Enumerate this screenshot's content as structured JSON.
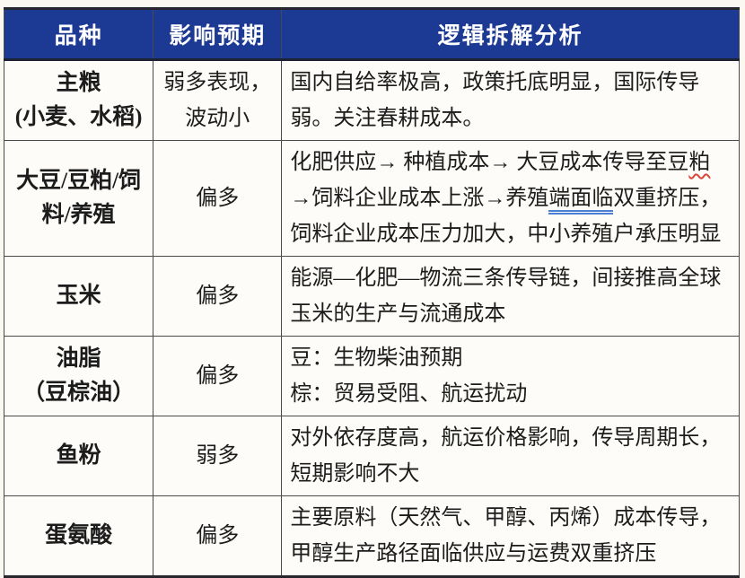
{
  "colors": {
    "page_bg": "#fbf8f1",
    "cell_bg": "#fdfcf8",
    "header_bg": "#1c3a94",
    "header_text": "#ffffff",
    "header_border": "#1d2335",
    "heavy_border": "#26262c",
    "thin_border": "#4a4a4a",
    "light_border": "#9a9a9a",
    "text_color": "#1c1c1c",
    "wavy_red": "#d9473b",
    "double_blue": "#4a7fd4"
  },
  "table": {
    "header": {
      "columns": [
        "品种",
        "影响预期",
        "逻辑拆解分析"
      ]
    },
    "rows": [
      {
        "variety_lines": [
          "主粮",
          "(小麦、水稻)"
        ],
        "expectation_lines": [
          "弱多表现，",
          "波动小"
        ],
        "analysis_lines": [
          [
            {
              "t": "国内自给率极高，政策托底明显，国际传导"
            }
          ],
          [
            {
              "t": "弱。关注春耕成本。"
            }
          ]
        ]
      },
      {
        "variety_lines": [
          "大豆/豆粕/饲",
          "料/养殖"
        ],
        "expectation_lines": [
          "偏多"
        ],
        "analysis_lines": [
          [
            {
              "t": "化肥供应→ 种植成本→ 大豆成本传导至豆"
            },
            {
              "t": "粕",
              "style": "red-wavy"
            }
          ],
          [
            {
              "t": "→饲料企业成本上涨→养殖"
            },
            {
              "t": "端面临",
              "style": "blue-double"
            },
            {
              "t": "双重挤压，"
            }
          ],
          [
            {
              "t": "饲料企业成本压力加大，中小养殖户承压明显"
            }
          ]
        ]
      },
      {
        "variety_lines": [
          "玉米"
        ],
        "expectation_lines": [
          "偏多"
        ],
        "analysis_lines": [
          [
            {
              "t": "能源—化肥—物流三条传导链，间接推高全球"
            }
          ],
          [
            {
              "t": "玉米的生产与流通成本"
            }
          ]
        ]
      },
      {
        "variety_lines": [
          "油脂",
          "（豆棕油）"
        ],
        "expectation_lines": [
          "偏多"
        ],
        "analysis_lines": [
          [
            {
              "t": "豆：生物柴油预期"
            }
          ],
          [
            {
              "t": "棕：贸易受阻、航运扰动"
            }
          ]
        ]
      },
      {
        "variety_lines": [
          "鱼粉"
        ],
        "expectation_lines": [
          "弱多"
        ],
        "analysis_lines": [
          [
            {
              "t": "对外依存度高，航运价格影响，传导周期长，"
            }
          ],
          [
            {
              "t": "短期影响不大"
            }
          ]
        ]
      },
      {
        "variety_lines": [
          "蛋氨酸"
        ],
        "expectation_lines": [
          "偏多"
        ],
        "analysis_lines": [
          [
            {
              "t": "主要原料（天然气、甲醇、丙烯）成本传导，"
            }
          ],
          [
            {
              "t": "甲醇生产路径面临供应与运费双重挤压"
            }
          ]
        ]
      }
    ]
  }
}
